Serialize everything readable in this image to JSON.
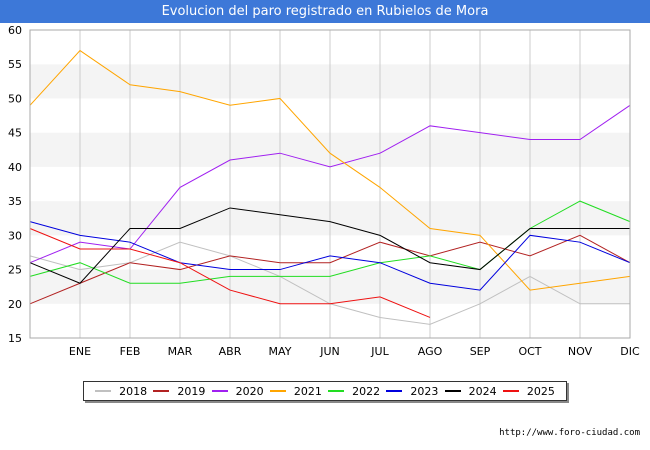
{
  "chart_data": {
    "type": "line",
    "title": "Evolucion del paro registrado en Rubielos de Mora",
    "categories": [
      "",
      "ENE",
      "FEB",
      "MAR",
      "ABR",
      "MAY",
      "JUN",
      "JUL",
      "AGO",
      "SEP",
      "OCT",
      "NOV",
      "DIC"
    ],
    "ylim": [
      15,
      60
    ],
    "yticks": [
      15,
      20,
      25,
      30,
      35,
      40,
      45,
      50,
      55,
      60
    ],
    "xlabel": "",
    "ylabel": "",
    "grid": true,
    "legend_position": "bottom",
    "series": [
      {
        "name": "2018",
        "color": "#c0c0c0",
        "values": [
          27,
          25,
          26,
          29,
          27,
          24,
          20,
          18,
          17,
          20,
          24,
          20,
          20
        ]
      },
      {
        "name": "2019",
        "color": "#b22222",
        "values": [
          20,
          23,
          26,
          25,
          27,
          26,
          26,
          29,
          27,
          29,
          27,
          30,
          26
        ]
      },
      {
        "name": "2020",
        "color": "#a020f0",
        "values": [
          26,
          29,
          28,
          37,
          41,
          42,
          40,
          42,
          46,
          45,
          44,
          44,
          49
        ]
      },
      {
        "name": "2021",
        "color": "#ffa500",
        "values": [
          49,
          57,
          52,
          51,
          49,
          50,
          42,
          37,
          31,
          30,
          22,
          23,
          24
        ]
      },
      {
        "name": "2022",
        "color": "#22dd22",
        "values": [
          24,
          26,
          23,
          23,
          24,
          24,
          24,
          26,
          27,
          25,
          31,
          35,
          32
        ]
      },
      {
        "name": "2023",
        "color": "#0000dd",
        "values": [
          32,
          30,
          29,
          26,
          25,
          25,
          27,
          26,
          23,
          22,
          30,
          29,
          26
        ]
      },
      {
        "name": "2024",
        "color": "#000000",
        "values": [
          26,
          23,
          31,
          31,
          34,
          33,
          32,
          30,
          26,
          25,
          31,
          31,
          31
        ]
      },
      {
        "name": "2025",
        "color": "#ee1111",
        "values": [
          31,
          28,
          28,
          26,
          22,
          20,
          20,
          21,
          18,
          null,
          null,
          null,
          null
        ]
      }
    ]
  },
  "source_text": "http://www.foro-ciudad.com"
}
